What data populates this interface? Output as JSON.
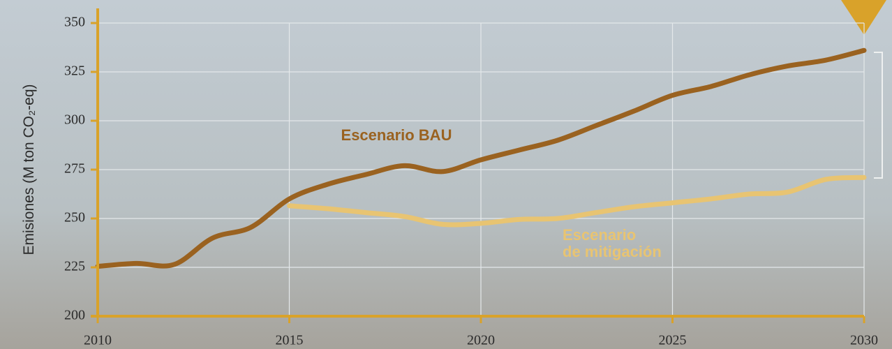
{
  "chart_data": {
    "type": "line",
    "ylabel": "Emisiones (M ton CO₂-eq)",
    "x": [
      2010,
      2011,
      2012,
      2013,
      2014,
      2015,
      2016,
      2017,
      2018,
      2019,
      2020,
      2021,
      2022,
      2023,
      2024,
      2025,
      2026,
      2027,
      2028,
      2029,
      2030
    ],
    "series": [
      {
        "name": "Escenario BAU",
        "color": "#9a6220",
        "values": [
          225.5,
          227,
          226.5,
          240,
          245.5,
          260,
          267.5,
          272.5,
          277,
          274,
          280,
          285,
          290,
          297.5,
          305,
          313,
          317.5,
          323.5,
          328,
          331,
          336
        ]
      },
      {
        "name": "Escenario de mitigación",
        "color": "#e8c472",
        "values": [
          null,
          null,
          null,
          null,
          null,
          256.5,
          255,
          253,
          251,
          247,
          247.5,
          249.5,
          250,
          253,
          256,
          258,
          260,
          262.5,
          263.5,
          270,
          271
        ]
      }
    ],
    "xlim": [
      2010,
      2030
    ],
    "xticks": [
      2010,
      2015,
      2020,
      2025,
      2030
    ],
    "ylim": [
      200,
      350
    ],
    "yticks": [
      200,
      225,
      250,
      275,
      300,
      325,
      350
    ],
    "grid": true,
    "axis_color": "#d9a22a"
  }
}
